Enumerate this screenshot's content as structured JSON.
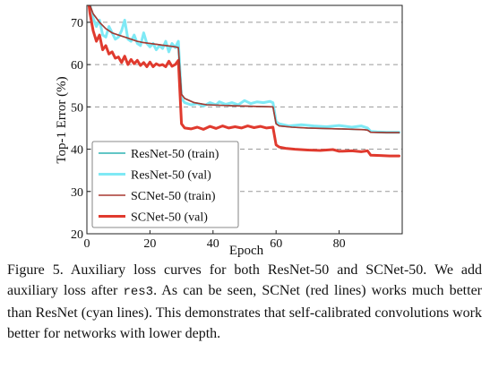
{
  "chart_data": {
    "type": "line",
    "xlabel": "Epoch",
    "ylabel": "Top-1 Error (%)",
    "xlim": [
      0,
      100
    ],
    "ylim": [
      20,
      74
    ],
    "xticks": [
      "0",
      "20",
      "40",
      "60",
      "80"
    ],
    "yticks": [
      "20",
      "30",
      "40",
      "50",
      "60",
      "70"
    ],
    "grid": "horizontal dashed",
    "legend_position": "lower-left",
    "series": [
      {
        "name": "ResNet-50 (train)",
        "color": "#2fb3b3",
        "style": "thin",
        "points": [
          [
            0,
            78
          ],
          [
            1,
            74
          ],
          [
            2,
            72
          ],
          [
            4,
            70
          ],
          [
            6,
            68.5
          ],
          [
            8,
            67.5
          ],
          [
            10,
            67
          ],
          [
            12,
            66.5
          ],
          [
            14,
            66
          ],
          [
            16,
            65.5
          ],
          [
            18,
            65.2
          ],
          [
            20,
            65
          ],
          [
            22,
            64.8
          ],
          [
            24,
            64.6
          ],
          [
            26,
            64.4
          ],
          [
            28,
            64.2
          ],
          [
            29,
            64
          ],
          [
            30,
            53
          ],
          [
            31,
            52
          ],
          [
            34,
            51
          ],
          [
            38,
            50.5
          ],
          [
            45,
            50.3
          ],
          [
            55,
            50.1
          ],
          [
            59,
            50
          ],
          [
            60,
            46
          ],
          [
            61,
            45.5
          ],
          [
            65,
            45.2
          ],
          [
            70,
            45
          ],
          [
            80,
            44.8
          ],
          [
            88,
            44.6
          ],
          [
            89,
            44.5
          ],
          [
            90,
            44
          ],
          [
            95,
            43.9
          ],
          [
            99,
            43.9
          ]
        ]
      },
      {
        "name": "ResNet-50 (val)",
        "color": "#7fe9f5",
        "style": "thick",
        "points": [
          [
            0,
            78
          ],
          [
            1,
            74
          ],
          [
            2,
            71
          ],
          [
            3,
            69
          ],
          [
            4,
            70.5
          ],
          [
            5,
            67
          ],
          [
            6,
            66.5
          ],
          [
            7,
            69
          ],
          [
            8,
            67.5
          ],
          [
            9,
            66
          ],
          [
            10,
            66.5
          ],
          [
            11,
            68
          ],
          [
            12,
            70.5
          ],
          [
            13,
            66
          ],
          [
            14,
            65.5
          ],
          [
            15,
            67
          ],
          [
            16,
            65
          ],
          [
            17,
            64.5
          ],
          [
            18,
            67.5
          ],
          [
            19,
            65
          ],
          [
            20,
            64.2
          ],
          [
            21,
            65
          ],
          [
            22,
            63.5
          ],
          [
            23,
            64.5
          ],
          [
            24,
            63.8
          ],
          [
            25,
            65.5
          ],
          [
            26,
            63
          ],
          [
            27,
            65
          ],
          [
            28,
            64
          ],
          [
            29,
            65.5
          ],
          [
            30,
            52
          ],
          [
            31,
            51
          ],
          [
            33,
            50.5
          ],
          [
            35,
            50.8
          ],
          [
            37,
            50.2
          ],
          [
            39,
            51
          ],
          [
            41,
            50.5
          ],
          [
            42,
            51.2
          ],
          [
            44,
            50.6
          ],
          [
            46,
            51
          ],
          [
            48,
            50.5
          ],
          [
            50,
            51.5
          ],
          [
            52,
            50.8
          ],
          [
            54,
            51.2
          ],
          [
            56,
            51
          ],
          [
            58,
            51.3
          ],
          [
            59,
            51
          ],
          [
            60,
            46.5
          ],
          [
            61,
            46
          ],
          [
            64,
            45.5
          ],
          [
            68,
            45.8
          ],
          [
            72,
            45.5
          ],
          [
            76,
            45.3
          ],
          [
            80,
            45.6
          ],
          [
            84,
            45.2
          ],
          [
            87,
            45.5
          ],
          [
            89,
            45
          ],
          [
            90,
            44.2
          ],
          [
            92,
            44.1
          ],
          [
            95,
            44
          ],
          [
            99,
            44
          ]
        ]
      },
      {
        "name": "SCNet-50 (train)",
        "color": "#a83830",
        "style": "thin",
        "points": [
          [
            0,
            78
          ],
          [
            1,
            74
          ],
          [
            2,
            72
          ],
          [
            4,
            70
          ],
          [
            6,
            68.5
          ],
          [
            8,
            67.5
          ],
          [
            10,
            67
          ],
          [
            12,
            66.5
          ],
          [
            14,
            66
          ],
          [
            16,
            65.5
          ],
          [
            18,
            65.2
          ],
          [
            20,
            65
          ],
          [
            22,
            64.8
          ],
          [
            24,
            64.6
          ],
          [
            26,
            64.4
          ],
          [
            28,
            64.2
          ],
          [
            29,
            64
          ],
          [
            30,
            53
          ],
          [
            31,
            52
          ],
          [
            34,
            51
          ],
          [
            38,
            50.5
          ],
          [
            45,
            50.3
          ],
          [
            55,
            50.1
          ],
          [
            59,
            50
          ],
          [
            60,
            46
          ],
          [
            61,
            45.5
          ],
          [
            65,
            45.2
          ],
          [
            70,
            45
          ],
          [
            80,
            44.8
          ],
          [
            88,
            44.6
          ],
          [
            89,
            44.5
          ],
          [
            90,
            44
          ],
          [
            95,
            43.9
          ],
          [
            99,
            43.9
          ]
        ]
      },
      {
        "name": "SCNet-50 (val)",
        "color": "#e03a2e",
        "style": "thick",
        "points": [
          [
            0,
            78
          ],
          [
            1,
            72
          ],
          [
            2,
            68
          ],
          [
            3,
            65.5
          ],
          [
            4,
            67
          ],
          [
            5,
            63.5
          ],
          [
            6,
            64.5
          ],
          [
            7,
            62.5
          ],
          [
            8,
            63
          ],
          [
            9,
            61.5
          ],
          [
            10,
            61.8
          ],
          [
            11,
            60.5
          ],
          [
            12,
            62
          ],
          [
            13,
            60
          ],
          [
            14,
            61.2
          ],
          [
            15,
            60.2
          ],
          [
            16,
            61
          ],
          [
            17,
            59.8
          ],
          [
            18,
            60.5
          ],
          [
            19,
            59.5
          ],
          [
            20,
            60.6
          ],
          [
            21,
            59.5
          ],
          [
            22,
            60.2
          ],
          [
            23,
            59.8
          ],
          [
            24,
            60
          ],
          [
            25,
            59.5
          ],
          [
            26,
            60.8
          ],
          [
            27,
            59.6
          ],
          [
            28,
            60
          ],
          [
            29,
            61
          ],
          [
            30,
            46
          ],
          [
            31,
            45
          ],
          [
            33,
            44.8
          ],
          [
            35,
            45.2
          ],
          [
            37,
            44.7
          ],
          [
            39,
            45.4
          ],
          [
            41,
            44.9
          ],
          [
            43,
            45.5
          ],
          [
            45,
            45
          ],
          [
            47,
            45.3
          ],
          [
            49,
            45
          ],
          [
            51,
            45.5
          ],
          [
            53,
            45.1
          ],
          [
            55,
            45.4
          ],
          [
            57,
            45
          ],
          [
            59,
            45.2
          ],
          [
            60,
            41
          ],
          [
            61,
            40.5
          ],
          [
            63,
            40.2
          ],
          [
            66,
            40
          ],
          [
            70,
            39.8
          ],
          [
            74,
            39.7
          ],
          [
            78,
            39.9
          ],
          [
            80,
            39.5
          ],
          [
            84,
            39.6
          ],
          [
            87,
            39.4
          ],
          [
            89,
            39.6
          ],
          [
            90,
            38.6
          ],
          [
            93,
            38.5
          ],
          [
            96,
            38.4
          ],
          [
            99,
            38.4
          ]
        ]
      }
    ]
  },
  "caption": {
    "part1": "Figure 5. Auxiliary loss curves for both ResNet-50 and SCNet-50. We add auxiliary loss after ",
    "code": "res3",
    "part2": ". As can be seen, SCNet (red lines) works much better than ResNet (cyan lines). This demonstrates that self-calibrated convolutions work better for networks with lower depth."
  }
}
